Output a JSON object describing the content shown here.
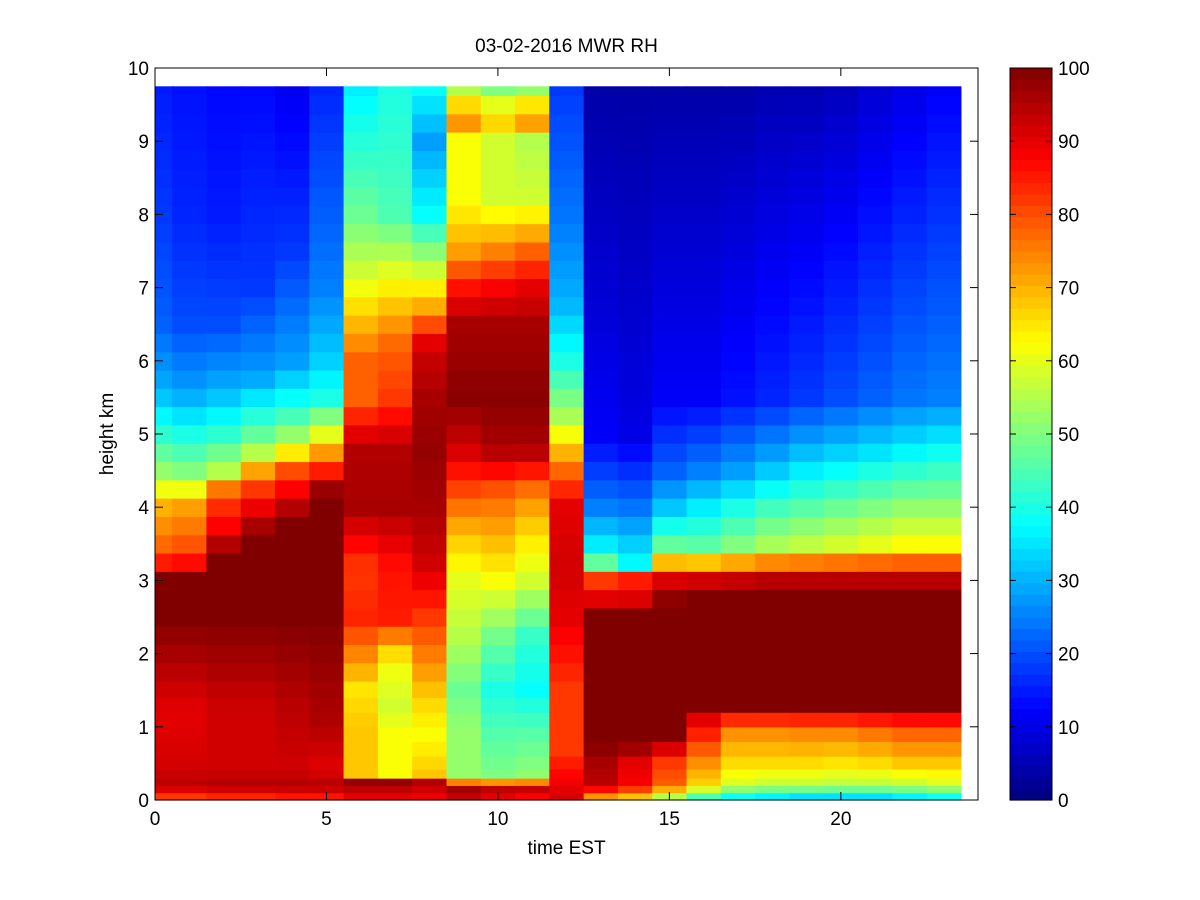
{
  "chart_data": {
    "type": "heatmap",
    "title": "03-02-2016 MWR RH",
    "xlabel": "time EST",
    "ylabel": "height km",
    "xlim": [
      0,
      24
    ],
    "ylim": [
      0,
      10
    ],
    "xticks": [
      0,
      5,
      10,
      15,
      20
    ],
    "yticks": [
      0,
      1,
      2,
      3,
      4,
      5,
      6,
      7,
      8,
      9,
      10
    ],
    "colorbar": {
      "min": 0,
      "max": 100,
      "ticks": [
        0,
        10,
        20,
        30,
        40,
        50,
        60,
        70,
        80,
        90,
        100
      ],
      "colormap": "jet"
    },
    "x": [
      0,
      1,
      2,
      3,
      4,
      5,
      6,
      7,
      8,
      9,
      10,
      11,
      12,
      13,
      14,
      15,
      16,
      17,
      18,
      19,
      20,
      21,
      22,
      23
    ],
    "y": [
      0.05,
      0.15,
      0.25,
      0.35,
      0.5,
      0.7,
      0.9,
      1.1,
      1.3,
      1.5,
      1.75,
      2.0,
      2.25,
      2.5,
      2.75,
      3.0,
      3.25,
      3.5,
      3.75,
      4.0,
      4.25,
      4.5,
      4.75,
      5.0,
      5.25,
      5.5,
      5.75,
      6.0,
      6.25,
      6.5,
      6.75,
      7.0,
      7.25,
      7.5,
      7.75,
      8.0,
      8.25,
      8.5,
      8.75,
      9.0,
      9.25,
      9.5,
      9.75
    ],
    "columns": [
      [
        [
          0,
          78
        ],
        [
          0.2,
          95
        ],
        [
          0.4,
          92
        ],
        [
          1.2,
          90
        ],
        [
          2.5,
          100
        ],
        [
          3.1,
          100
        ],
        [
          3.3,
          80
        ],
        [
          4.0,
          70
        ],
        [
          4.5,
          52
        ],
        [
          5.0,
          42
        ],
        [
          5.6,
          30
        ],
        [
          6.5,
          22
        ],
        [
          8.0,
          18
        ],
        [
          9.75,
          15
        ]
      ],
      [
        [
          0,
          78
        ],
        [
          0.2,
          95
        ],
        [
          0.4,
          92
        ],
        [
          1.2,
          90
        ],
        [
          2.5,
          100
        ],
        [
          3.1,
          100
        ],
        [
          3.3,
          82
        ],
        [
          4.0,
          72
        ],
        [
          4.5,
          50
        ],
        [
          5.0,
          40
        ],
        [
          5.6,
          28
        ],
        [
          6.5,
          20
        ],
        [
          8.0,
          16
        ],
        [
          9.75,
          14
        ]
      ],
      [
        [
          0,
          80
        ],
        [
          0.2,
          96
        ],
        [
          0.4,
          92
        ],
        [
          1.2,
          92
        ],
        [
          2.5,
          100
        ],
        [
          3.4,
          100
        ],
        [
          3.6,
          90
        ],
        [
          4.2,
          80
        ],
        [
          4.5,
          55
        ],
        [
          5.0,
          42
        ],
        [
          5.6,
          30
        ],
        [
          6.5,
          20
        ],
        [
          8.0,
          15
        ],
        [
          9.75,
          13
        ]
      ],
      [
        [
          0,
          80
        ],
        [
          0.2,
          96
        ],
        [
          0.4,
          92
        ],
        [
          1.2,
          92
        ],
        [
          2.5,
          100
        ],
        [
          3.6,
          100
        ],
        [
          3.9,
          92
        ],
        [
          4.4,
          78
        ],
        [
          4.8,
          52
        ],
        [
          5.3,
          40
        ],
        [
          5.8,
          28
        ],
        [
          7.0,
          18
        ],
        [
          9.75,
          13
        ]
      ],
      [
        [
          0,
          82
        ],
        [
          0.2,
          96
        ],
        [
          0.4,
          92
        ],
        [
          1.2,
          94
        ],
        [
          2.5,
          100
        ],
        [
          3.8,
          100
        ],
        [
          4.0,
          95
        ],
        [
          4.5,
          80
        ],
        [
          4.9,
          55
        ],
        [
          5.4,
          40
        ],
        [
          6.0,
          28
        ],
        [
          7.5,
          18
        ],
        [
          9.75,
          11
        ]
      ],
      [
        [
          0,
          82
        ],
        [
          0.2,
          96
        ],
        [
          0.4,
          90
        ],
        [
          1.0,
          95
        ],
        [
          2.5,
          100
        ],
        [
          4.2,
          100
        ],
        [
          4.6,
          80
        ],
        [
          5.0,
          60
        ],
        [
          5.5,
          40
        ],
        [
          6.0,
          33
        ],
        [
          7.0,
          25
        ],
        [
          9.75,
          16
        ]
      ],
      [
        [
          0,
          88
        ],
        [
          0.25,
          98
        ],
        [
          0.35,
          68
        ],
        [
          1.0,
          68
        ],
        [
          1.5,
          65
        ],
        [
          2.5,
          84
        ],
        [
          3.2,
          82
        ],
        [
          4.0,
          96
        ],
        [
          4.8,
          95
        ],
        [
          5.5,
          78
        ],
        [
          6.0,
          78
        ],
        [
          6.6,
          68
        ],
        [
          7.2,
          58
        ],
        [
          8.0,
          48
        ],
        [
          9.75,
          36
        ]
      ],
      [
        [
          0,
          88
        ],
        [
          0.25,
          98
        ],
        [
          0.35,
          62
        ],
        [
          0.9,
          62
        ],
        [
          1.3,
          58
        ],
        [
          1.9,
          62
        ],
        [
          2.5,
          85
        ],
        [
          3.2,
          86
        ],
        [
          4.0,
          96
        ],
        [
          4.8,
          95
        ],
        [
          5.5,
          82
        ],
        [
          6.2,
          78
        ],
        [
          7.0,
          64
        ],
        [
          8.0,
          45
        ],
        [
          9.75,
          40
        ]
      ],
      [
        [
          0,
          88
        ],
        [
          0.25,
          95
        ],
        [
          0.35,
          68
        ],
        [
          0.9,
          62
        ],
        [
          1.3,
          66
        ],
        [
          1.9,
          74
        ],
        [
          2.5,
          82
        ],
        [
          3.2,
          92
        ],
        [
          4.0,
          96
        ],
        [
          4.8,
          98
        ],
        [
          5.5,
          96
        ],
        [
          6.2,
          92
        ],
        [
          6.7,
          72
        ],
        [
          7.3,
          56
        ],
        [
          8.0,
          38
        ],
        [
          9.0,
          28
        ],
        [
          9.75,
          38
        ]
      ],
      [
        [
          0,
          92
        ],
        [
          0.2,
          98
        ],
        [
          0.3,
          52
        ],
        [
          1.0,
          52
        ],
        [
          1.5,
          48
        ],
        [
          2.2,
          55
        ],
        [
          3.0,
          60
        ],
        [
          3.6,
          68
        ],
        [
          4.2,
          80
        ],
        [
          4.8,
          92
        ],
        [
          5.5,
          99
        ],
        [
          6.5,
          96
        ],
        [
          7.0,
          86
        ],
        [
          7.5,
          72
        ],
        [
          8.2,
          62
        ],
        [
          9.0,
          62
        ],
        [
          9.3,
          75
        ],
        [
          9.75,
          55
        ]
      ],
      [
        [
          0,
          88
        ],
        [
          0.2,
          96
        ],
        [
          0.3,
          50
        ],
        [
          1.0,
          45
        ],
        [
          1.5,
          40
        ],
        [
          2.2,
          48
        ],
        [
          3.0,
          62
        ],
        [
          3.6,
          70
        ],
        [
          4.2,
          78
        ],
        [
          4.8,
          96
        ],
        [
          5.5,
          99
        ],
        [
          6.5,
          96
        ],
        [
          7.0,
          88
        ],
        [
          7.5,
          75
        ],
        [
          8.2,
          58
        ],
        [
          9.0,
          58
        ],
        [
          9.3,
          68
        ],
        [
          9.75,
          50
        ]
      ],
      [
        [
          0,
          85
        ],
        [
          0.2,
          96
        ],
        [
          0.3,
          52
        ],
        [
          1.0,
          45
        ],
        [
          1.5,
          38
        ],
        [
          2.2,
          42
        ],
        [
          3.0,
          58
        ],
        [
          3.6,
          65
        ],
        [
          4.2,
          75
        ],
        [
          4.8,
          96
        ],
        [
          5.5,
          99
        ],
        [
          6.5,
          96
        ],
        [
          7.0,
          90
        ],
        [
          7.5,
          78
        ],
        [
          8.2,
          58
        ],
        [
          9.0,
          55
        ],
        [
          9.3,
          75
        ],
        [
          9.75,
          52
        ]
      ],
      [
        [
          0,
          92
        ],
        [
          0.3,
          88
        ],
        [
          0.7,
          82
        ],
        [
          1.5,
          82
        ],
        [
          2.5,
          90
        ],
        [
          3.2,
          92
        ],
        [
          4.0,
          90
        ],
        [
          4.6,
          75
        ],
        [
          5.2,
          55
        ],
        [
          6.0,
          40
        ],
        [
          6.8,
          30
        ],
        [
          8.0,
          24
        ],
        [
          9.75,
          18
        ]
      ],
      [
        [
          0,
          66
        ],
        [
          0.2,
          94
        ],
        [
          0.5,
          96
        ],
        [
          0.8,
          100
        ],
        [
          2.5,
          100
        ],
        [
          2.7,
          92
        ],
        [
          3.0,
          82
        ],
        [
          3.3,
          40
        ],
        [
          4.0,
          25
        ],
        [
          5.0,
          12
        ],
        [
          6.5,
          9
        ],
        [
          9.75,
          4
        ]
      ],
      [
        [
          0,
          62
        ],
        [
          0.2,
          88
        ],
        [
          0.5,
          90
        ],
        [
          0.8,
          100
        ],
        [
          2.5,
          100
        ],
        [
          2.7,
          92
        ],
        [
          3.0,
          85
        ],
        [
          3.2,
          38
        ],
        [
          4.0,
          24
        ],
        [
          5.0,
          10
        ],
        [
          6.5,
          8
        ],
        [
          9.75,
          4
        ]
      ],
      [
        [
          0,
          48
        ],
        [
          0.2,
          78
        ],
        [
          0.5,
          82
        ],
        [
          0.9,
          100
        ],
        [
          2.7,
          100
        ],
        [
          3.1,
          88
        ],
        [
          3.4,
          50
        ],
        [
          4.0,
          32
        ],
        [
          4.5,
          22
        ],
        [
          5.5,
          12
        ],
        [
          9.75,
          4
        ]
      ],
      [
        [
          0,
          38
        ],
        [
          0.2,
          66
        ],
        [
          0.6,
          76
        ],
        [
          1.1,
          90
        ],
        [
          1.3,
          100
        ],
        [
          2.8,
          100
        ],
        [
          3.1,
          88
        ],
        [
          3.4,
          48
        ],
        [
          4.0,
          36
        ],
        [
          4.5,
          25
        ],
        [
          5.5,
          12
        ],
        [
          9.75,
          4
        ]
      ],
      [
        [
          0,
          32
        ],
        [
          0.2,
          58
        ],
        [
          0.5,
          66
        ],
        [
          1.0,
          75
        ],
        [
          1.3,
          100
        ],
        [
          2.8,
          100
        ],
        [
          3.1,
          90
        ],
        [
          3.4,
          52
        ],
        [
          4.0,
          40
        ],
        [
          4.5,
          28
        ],
        [
          5.5,
          14
        ],
        [
          9.75,
          4
        ]
      ],
      [
        [
          0,
          30
        ],
        [
          0.2,
          56
        ],
        [
          0.5,
          66
        ],
        [
          1.0,
          75
        ],
        [
          1.3,
          100
        ],
        [
          2.8,
          100
        ],
        [
          3.1,
          92
        ],
        [
          3.4,
          56
        ],
        [
          4.0,
          44
        ],
        [
          4.6,
          30
        ],
        [
          5.5,
          16
        ],
        [
          9.75,
          5
        ]
      ],
      [
        [
          0,
          28
        ],
        [
          0.2,
          56
        ],
        [
          0.5,
          66
        ],
        [
          1.0,
          76
        ],
        [
          1.3,
          100
        ],
        [
          2.8,
          100
        ],
        [
          3.1,
          92
        ],
        [
          3.4,
          58
        ],
        [
          4.0,
          46
        ],
        [
          4.7,
          32
        ],
        [
          5.5,
          18
        ],
        [
          9.75,
          5
        ]
      ],
      [
        [
          0,
          28
        ],
        [
          0.2,
          55
        ],
        [
          0.5,
          65
        ],
        [
          1.0,
          76
        ],
        [
          1.3,
          100
        ],
        [
          2.8,
          100
        ],
        [
          3.1,
          92
        ],
        [
          3.4,
          60
        ],
        [
          4.0,
          48
        ],
        [
          4.8,
          32
        ],
        [
          5.5,
          20
        ],
        [
          9.75,
          6
        ]
      ],
      [
        [
          0,
          28
        ],
        [
          0.2,
          55
        ],
        [
          0.5,
          66
        ],
        [
          1.0,
          78
        ],
        [
          1.3,
          100
        ],
        [
          2.8,
          100
        ],
        [
          3.1,
          92
        ],
        [
          3.4,
          62
        ],
        [
          4.0,
          50
        ],
        [
          4.8,
          34
        ],
        [
          5.5,
          22
        ],
        [
          9.75,
          8
        ]
      ],
      [
        [
          0,
          30
        ],
        [
          0.2,
          56
        ],
        [
          0.5,
          68
        ],
        [
          1.0,
          80
        ],
        [
          1.3,
          100
        ],
        [
          2.8,
          100
        ],
        [
          3.1,
          92
        ],
        [
          3.4,
          64
        ],
        [
          4.0,
          52
        ],
        [
          4.8,
          36
        ],
        [
          5.5,
          24
        ],
        [
          9.75,
          10
        ]
      ],
      [
        [
          0,
          32
        ],
        [
          0.2,
          58
        ],
        [
          0.5,
          68
        ],
        [
          1.0,
          80
        ],
        [
          1.3,
          100
        ],
        [
          2.8,
          100
        ],
        [
          3.1,
          92
        ],
        [
          3.4,
          64
        ],
        [
          4.0,
          52
        ],
        [
          4.8,
          38
        ],
        [
          5.5,
          25
        ],
        [
          9.75,
          12
        ]
      ]
    ]
  }
}
